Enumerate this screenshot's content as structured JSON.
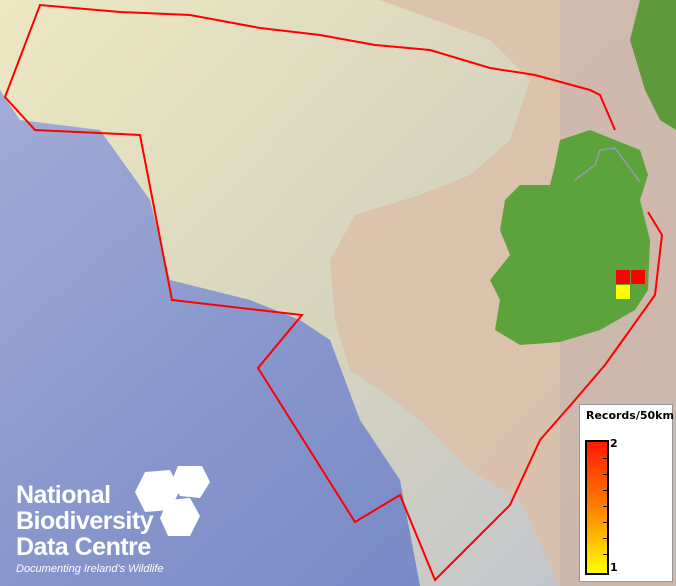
{
  "map": {
    "colors": {
      "deep_ocean": "#7e8fc8",
      "shelf": "#e6e2bc",
      "land_britain": "#d9a990",
      "ireland": "#5aa03a",
      "boundary": "#ff0000"
    },
    "records": [
      {
        "grid": "cell-1",
        "value": 2,
        "color": "#ff0000"
      },
      {
        "grid": "cell-2",
        "value": 2,
        "color": "#ff0000"
      },
      {
        "grid": "cell-3",
        "value": 1,
        "color": "#ffff00"
      }
    ]
  },
  "legend": {
    "title": "Records/50km",
    "max_label": "2",
    "min_label": "1",
    "min": 1,
    "max": 2,
    "colors": [
      "#ffff00",
      "#ff0000"
    ]
  },
  "logo": {
    "line1": "National",
    "line2": "Biodiversity",
    "line3": "Data Centre",
    "tagline": "Documenting Ireland's Wildlife"
  }
}
